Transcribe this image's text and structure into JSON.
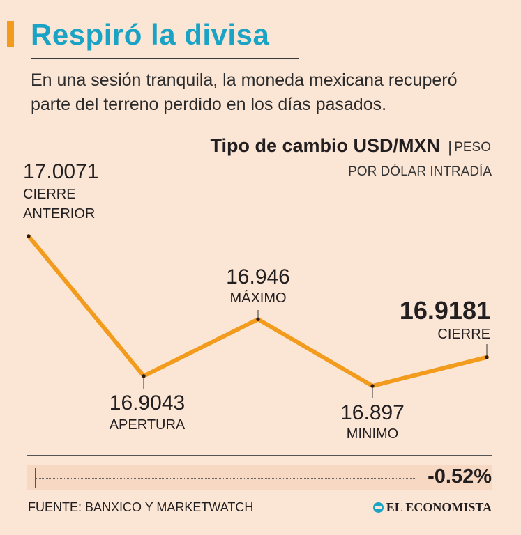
{
  "header": {
    "title": "Respiró la divisa",
    "subtitle": "En una sesión tranquila, la moneda mexicana recuperó parte del terreno perdido en los días pasados."
  },
  "chart_header": {
    "title": "Tipo de cambio USD/MXN",
    "separator": "|",
    "unit_line1": "PESO",
    "unit_line2": "POR DÓLAR INTRADÍA"
  },
  "chart_data": {
    "type": "line",
    "title": "Tipo de cambio USD/MXN",
    "ylabel": "Peso por dólar intradía",
    "ylim": [
      16.88,
      17.02
    ],
    "points": [
      {
        "label": "CIERRE ANTERIOR",
        "value": 17.0071,
        "value_text": "17.0071"
      },
      {
        "label": "APERTURA",
        "value": 16.9043,
        "value_text": "16.9043"
      },
      {
        "label": "MÁXIMO",
        "value": 16.946,
        "value_text": "16.946"
      },
      {
        "label": "MINIMO",
        "value": 16.897,
        "value_text": "16.897"
      },
      {
        "label": "CIERRE",
        "value": 16.9181,
        "value_text": "16.9181"
      }
    ],
    "line_color": "#f29b1d"
  },
  "change": {
    "value": "-0.52%"
  },
  "footer": {
    "source": "FUENTE: BANXICO Y MARKETWATCH",
    "brand": "EL ECONOMISTA"
  },
  "colors": {
    "background": "#fbe6d6",
    "title": "#1aa3c4",
    "accent": "#f29b1d"
  }
}
